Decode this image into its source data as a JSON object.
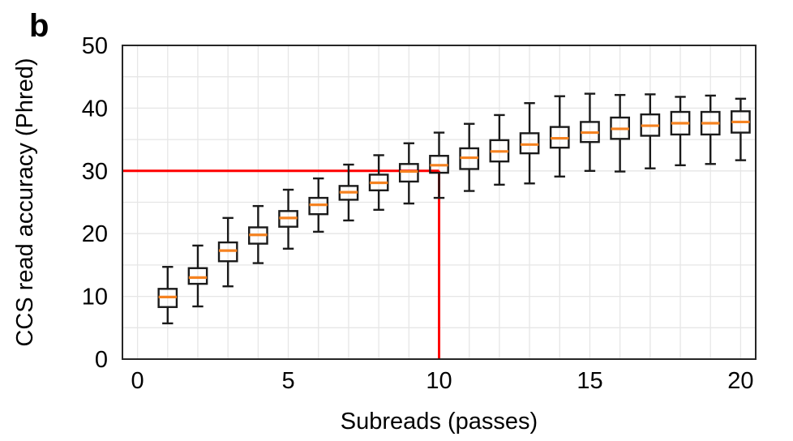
{
  "panel_label": "b",
  "colors": {
    "background": "#ffffff",
    "box_stroke": "#1a1a1a",
    "median": "#f58220",
    "reference_line": "#ff0000",
    "grid": "#e6e6e6",
    "frame": "#262626",
    "text": "#000000"
  },
  "chart_data": {
    "type": "boxplot",
    "title": "",
    "xlabel": "Subreads (passes)",
    "ylabel": "CCS read accuracy (Phred)",
    "xlim": [
      -0.5,
      20.5
    ],
    "ylim": [
      0,
      50
    ],
    "x_ticks": [
      0,
      5,
      10,
      15,
      20
    ],
    "y_ticks": [
      0,
      10,
      20,
      30,
      40,
      50
    ],
    "grid": {
      "on": true,
      "x_minor_every": 1,
      "y_minor_every": 5
    },
    "legend": "none",
    "box_width": 0.6,
    "cap_width": 0.36,
    "boxes": [
      {
        "x": 1,
        "whisker_low": 5.7,
        "q1": 8.3,
        "median": 9.9,
        "q3": 11.2,
        "whisker_high": 14.7
      },
      {
        "x": 2,
        "whisker_low": 8.4,
        "q1": 12.0,
        "median": 13.0,
        "q3": 14.5,
        "whisker_high": 18.1
      },
      {
        "x": 3,
        "whisker_low": 11.6,
        "q1": 15.6,
        "median": 17.3,
        "q3": 18.6,
        "whisker_high": 22.5
      },
      {
        "x": 4,
        "whisker_low": 15.3,
        "q1": 18.4,
        "median": 19.8,
        "q3": 21.0,
        "whisker_high": 24.4
      },
      {
        "x": 5,
        "whisker_low": 17.6,
        "q1": 21.1,
        "median": 22.5,
        "q3": 23.6,
        "whisker_high": 27.0
      },
      {
        "x": 6,
        "whisker_low": 20.3,
        "q1": 23.1,
        "median": 24.6,
        "q3": 25.7,
        "whisker_high": 28.8
      },
      {
        "x": 7,
        "whisker_low": 22.1,
        "q1": 25.4,
        "median": 26.6,
        "q3": 27.6,
        "whisker_high": 31.0
      },
      {
        "x": 8,
        "whisker_low": 23.8,
        "q1": 26.9,
        "median": 28.1,
        "q3": 29.4,
        "whisker_high": 32.5
      },
      {
        "x": 9,
        "whisker_low": 24.8,
        "q1": 28.3,
        "median": 29.9,
        "q3": 31.1,
        "whisker_high": 34.4
      },
      {
        "x": 10,
        "whisker_low": 25.7,
        "q1": 29.7,
        "median": 30.9,
        "q3": 32.4,
        "whisker_high": 36.1
      },
      {
        "x": 11,
        "whisker_low": 26.8,
        "q1": 30.3,
        "median": 32.1,
        "q3": 33.6,
        "whisker_high": 37.5
      },
      {
        "x": 12,
        "whisker_low": 27.8,
        "q1": 31.5,
        "median": 33.1,
        "q3": 34.9,
        "whisker_high": 38.9
      },
      {
        "x": 13,
        "whisker_low": 28.0,
        "q1": 32.8,
        "median": 34.2,
        "q3": 36.0,
        "whisker_high": 40.8
      },
      {
        "x": 14,
        "whisker_low": 29.1,
        "q1": 33.7,
        "median": 35.2,
        "q3": 37.0,
        "whisker_high": 41.9
      },
      {
        "x": 15,
        "whisker_low": 30.0,
        "q1": 34.6,
        "median": 36.1,
        "q3": 37.8,
        "whisker_high": 42.3
      },
      {
        "x": 16,
        "whisker_low": 29.9,
        "q1": 35.1,
        "median": 36.7,
        "q3": 38.5,
        "whisker_high": 42.1
      },
      {
        "x": 17,
        "whisker_low": 30.4,
        "q1": 35.6,
        "median": 37.2,
        "q3": 39.0,
        "whisker_high": 42.2
      },
      {
        "x": 18,
        "whisker_low": 30.9,
        "q1": 35.8,
        "median": 37.6,
        "q3": 39.4,
        "whisker_high": 41.8
      },
      {
        "x": 19,
        "whisker_low": 31.1,
        "q1": 35.8,
        "median": 37.6,
        "q3": 39.4,
        "whisker_high": 42.0
      },
      {
        "x": 20,
        "whisker_low": 31.7,
        "q1": 36.1,
        "median": 37.8,
        "q3": 39.5,
        "whisker_high": 41.5
      }
    ],
    "reference_lines": [
      {
        "type": "horizontal",
        "y": 30,
        "x_start": -0.5,
        "x_end": 10
      },
      {
        "type": "vertical",
        "x": 10,
        "y_start": 0,
        "y_end": 30
      }
    ]
  }
}
